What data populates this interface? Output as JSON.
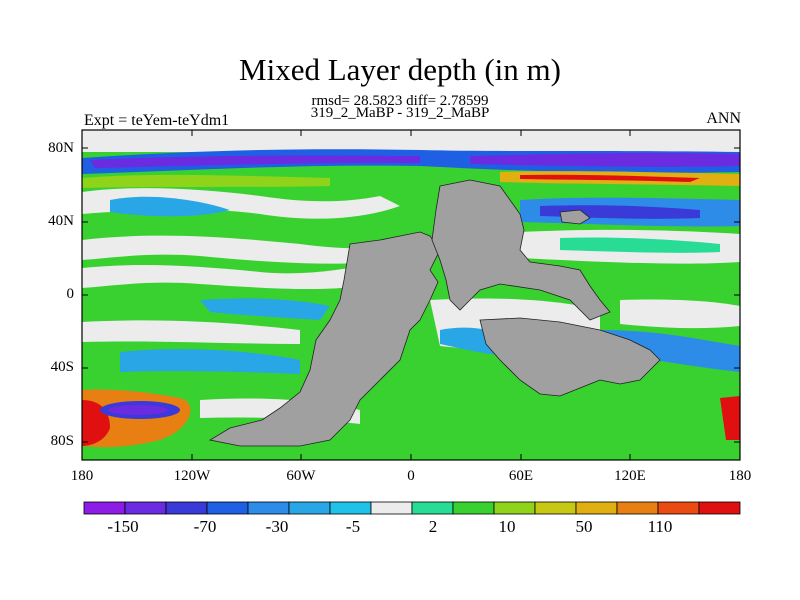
{
  "title": "Mixed Layer depth (in m)",
  "stats_line": "rmsd= 28.5823 diff= 2.78599",
  "period_line": "319_2_MaBP - 319_2_MaBP",
  "experiment_label": "Expt = teYem-teYdm1",
  "season_label": "ANN",
  "lat_ticks": [
    "80N",
    "40N",
    "0",
    "40S",
    "80S"
  ],
  "lon_ticks": [
    "180",
    "120W",
    "60W",
    "0",
    "60E",
    "120E",
    "180"
  ],
  "colorbar": {
    "colors": [
      "#8c1ce6",
      "#6b2be0",
      "#3a3ad8",
      "#1f5fe4",
      "#2c8ce8",
      "#29a6e6",
      "#20c3e8",
      "#ececec",
      "#28dc96",
      "#39d12f",
      "#8fd31a",
      "#c7c814",
      "#e0b012",
      "#e77f12",
      "#ea4b12",
      "#e01010"
    ],
    "labels": [
      "-150",
      "-70",
      "-30",
      "-5",
      "2",
      "10",
      "50",
      "110"
    ]
  },
  "land_color": "#a0a0a0"
}
